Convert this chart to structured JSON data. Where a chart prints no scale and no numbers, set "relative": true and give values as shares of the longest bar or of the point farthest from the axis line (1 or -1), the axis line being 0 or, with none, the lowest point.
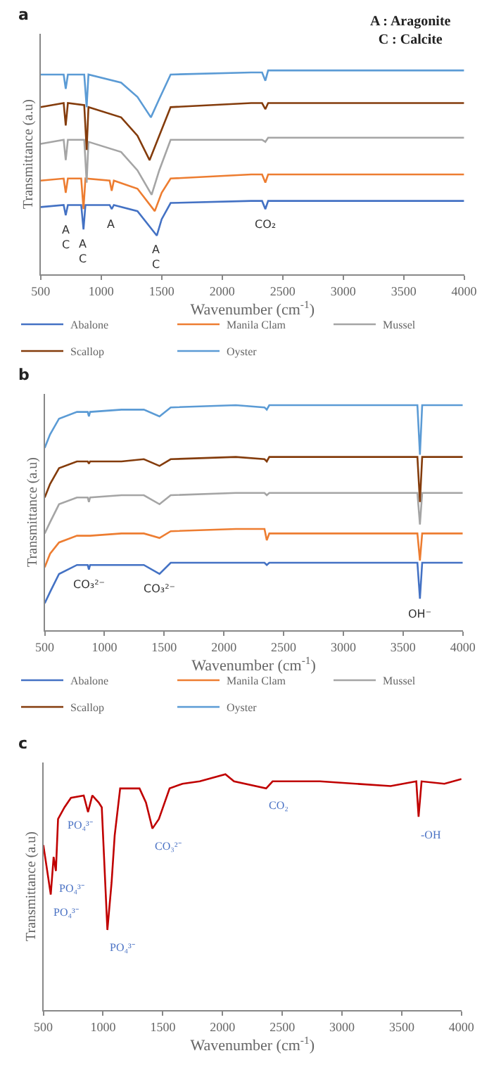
{
  "chart_data": [
    {
      "type": "line",
      "title": "a",
      "xlabel": "Wavenumber (cm$^{-1}$)",
      "ylabel": "Transmittance (a.u)",
      "relative": true,
      "xlim": [
        500,
        4000
      ],
      "xticks": [
        500,
        1000,
        1500,
        2000,
        2500,
        3000,
        3500,
        4000
      ],
      "tick_labels": "x",
      "legend": "bottom",
      "marker": "none",
      "line_style": "solid",
      "series": [
        {
          "name": "Abalone",
          "color": "#4472c4",
          "x": [
            500,
            690,
            707,
            725,
            835,
            854,
            870,
            1070,
            1087,
            1105,
            1300,
            1460,
            1500,
            1574,
            2240,
            2330,
            2357,
            2380,
            4000
          ],
          "values": [
            0.33,
            0.34,
            0.29,
            0.34,
            0.34,
            0.22,
            0.34,
            0.34,
            0.32,
            0.34,
            0.31,
            0.19,
            0.27,
            0.35,
            0.36,
            0.36,
            0.32,
            0.36,
            0.36
          ]
        },
        {
          "name": "Manila Clam",
          "color": "#ed7d31",
          "x": [
            500,
            690,
            707,
            725,
            835,
            854,
            870,
            1070,
            1087,
            1105,
            1300,
            1443,
            1500,
            1574,
            2240,
            2330,
            2357,
            2380,
            4000
          ],
          "values": [
            0.46,
            0.47,
            0.4,
            0.47,
            0.47,
            0.32,
            0.47,
            0.46,
            0.41,
            0.46,
            0.42,
            0.31,
            0.4,
            0.47,
            0.49,
            0.49,
            0.45,
            0.49,
            0.49
          ]
        },
        {
          "name": "Mussel",
          "color": "#a5a5a5",
          "x": [
            500,
            690,
            707,
            725,
            860,
            880,
            895,
            1165,
            1300,
            1417,
            1480,
            1574,
            2240,
            2330,
            2357,
            2380,
            4000
          ],
          "values": [
            0.64,
            0.66,
            0.56,
            0.66,
            0.66,
            0.45,
            0.65,
            0.6,
            0.51,
            0.39,
            0.51,
            0.66,
            0.66,
            0.66,
            0.65,
            0.67,
            0.67
          ]
        },
        {
          "name": "Scallop",
          "color": "#843c0c",
          "x": [
            500,
            690,
            707,
            725,
            860,
            880,
            895,
            1165,
            1300,
            1400,
            1480,
            1574,
            2240,
            2330,
            2357,
            2380,
            4000
          ],
          "values": [
            0.82,
            0.84,
            0.73,
            0.84,
            0.83,
            0.61,
            0.82,
            0.77,
            0.68,
            0.56,
            0.68,
            0.82,
            0.84,
            0.84,
            0.81,
            0.84,
            0.84
          ]
        },
        {
          "name": "Oyster",
          "color": "#5b9bd5",
          "x": [
            500,
            690,
            707,
            725,
            860,
            880,
            895,
            1165,
            1300,
            1411,
            1480,
            1574,
            2240,
            2330,
            2357,
            2380,
            4000
          ],
          "values": [
            0.98,
            0.98,
            0.91,
            0.98,
            0.98,
            0.82,
            0.98,
            0.94,
            0.87,
            0.77,
            0.86,
            0.98,
            0.99,
            0.99,
            0.95,
            1,
            1
          ]
        }
      ],
      "annotations": [
        "A : Aragonite\nC : Calcite",
        {
          "text": "A\nC",
          "x": 707,
          "y": 0.29
        },
        {
          "text": "A\nC",
          "x": 854,
          "y": 0.22
        },
        {
          "text": "A",
          "x": 1087,
          "y": 0.32
        },
        {
          "text": "A\nC",
          "x": 1460,
          "y": 0.19
        },
        {
          "text": "CO₂",
          "x": 2357,
          "y": 0.32
        }
      ]
    },
    {
      "type": "line",
      "title": "b",
      "xlabel": "Wavenumber (cm$^{-1}$)",
      "ylabel": "Transmittance (a.u)",
      "relative": true,
      "xlim": [
        500,
        4000
      ],
      "xticks": [
        500,
        1000,
        1500,
        2000,
        2500,
        3000,
        3500,
        4000
      ],
      "tick_labels": "x",
      "legend": "bottom",
      "marker": "none",
      "line_style": "solid",
      "x": [
        500,
        545,
        620,
        770,
        860,
        870,
        880,
        1143,
        1330,
        1461,
        1555,
        2100,
        2340,
        2359,
        2380,
        3620,
        3641,
        3660,
        4000
      ],
      "series": [
        {
          "name": "Abalone",
          "color": "#4472c4",
          "values": [
            0.12,
            0.17,
            0.25,
            0.29,
            0.29,
            0.27,
            0.29,
            0.29,
            0.29,
            0.25,
            0.3,
            0.3,
            0.3,
            0.29,
            0.3,
            0.3,
            0.14,
            0.3,
            0.3
          ]
        },
        {
          "name": "Manila Clam",
          "color": "#ed7d31",
          "values": [
            0.28,
            0.34,
            0.39,
            0.42,
            0.42,
            0.42,
            0.42,
            0.43,
            0.43,
            0.41,
            0.44,
            0.45,
            0.45,
            0.4,
            0.43,
            0.43,
            0.31,
            0.43,
            0.43
          ]
        },
        {
          "name": "Mussel",
          "color": "#a5a5a5",
          "values": [
            0.43,
            0.48,
            0.56,
            0.59,
            0.59,
            0.57,
            0.59,
            0.6,
            0.6,
            0.56,
            0.6,
            0.61,
            0.61,
            0.6,
            0.61,
            0.61,
            0.47,
            0.61,
            0.61
          ]
        },
        {
          "name": "Scallop",
          "color": "#843c0c",
          "values": [
            0.59,
            0.65,
            0.72,
            0.75,
            0.75,
            0.74,
            0.75,
            0.75,
            0.76,
            0.73,
            0.76,
            0.77,
            0.76,
            0.75,
            0.77,
            0.77,
            0.57,
            0.77,
            0.77
          ]
        },
        {
          "name": "Oyster",
          "color": "#5b9bd5",
          "values": [
            0.81,
            0.87,
            0.94,
            0.97,
            0.97,
            0.95,
            0.97,
            0.98,
            0.98,
            0.95,
            0.99,
            1,
            0.99,
            0.98,
            1,
            1,
            0.78,
            1,
            1
          ]
        }
      ],
      "annotations": [
        {
          "text": "CO₃²⁻",
          "x": 870,
          "y": 0.27
        },
        {
          "text": "CO₃²⁻",
          "x": 1461,
          "y": 0.25
        },
        {
          "text": "OH⁻",
          "x": 3641,
          "y": 0.14
        }
      ]
    },
    {
      "type": "line",
      "title": "c",
      "xlabel": "Wavenumber (cm$^{-1}$)",
      "ylabel": "Transmittance (a.u)",
      "relative": true,
      "xlim": [
        500,
        4000
      ],
      "xticks": [
        500,
        1000,
        1500,
        2000,
        2500,
        3000,
        3500,
        4000
      ],
      "tick_labels": "x",
      "marker": "none",
      "line_style": "solid",
      "x": [
        500,
        562,
        586,
        605,
        623,
        677,
        731,
        838,
        874,
        910,
        964,
        989,
        1036,
        1071,
        1097,
        1143,
        1305,
        1359,
        1413,
        1467,
        1557,
        1665,
        1809,
        2024,
        2096,
        2365,
        2419,
        2815,
        3407,
        3622,
        3641,
        3666,
        3857,
        4000
      ],
      "series": [
        {
          "color": "#c00000",
          "values": [
            0.7,
            0.49,
            0.65,
            0.59,
            0.81,
            0.86,
            0.9,
            0.91,
            0.84,
            0.91,
            0.88,
            0.86,
            0.34,
            0.54,
            0.74,
            0.94,
            0.94,
            0.88,
            0.77,
            0.81,
            0.94,
            0.96,
            0.97,
            1,
            0.97,
            0.94,
            0.97,
            0.97,
            0.95,
            0.97,
            0.82,
            0.97,
            0.96,
            0.98
          ]
        }
      ],
      "annotations": [
        {
          "text": "PO₄³⁻",
          "x": 677,
          "y": 0.86
        },
        {
          "text": "PO₄³⁻",
          "x": 605,
          "y": 0.59
        },
        {
          "text": "PO₄³⁻",
          "x": 562,
          "y": 0.49
        },
        {
          "text": "PO₄³⁻",
          "x": 1036,
          "y": 0.34
        },
        {
          "text": "CO₃²⁻",
          "x": 1413,
          "y": 0.77
        },
        {
          "text": "CO₂",
          "x": 2365,
          "y": 0.94
        },
        {
          "text": "-OH",
          "x": 3641,
          "y": 0.82
        }
      ]
    }
  ]
}
